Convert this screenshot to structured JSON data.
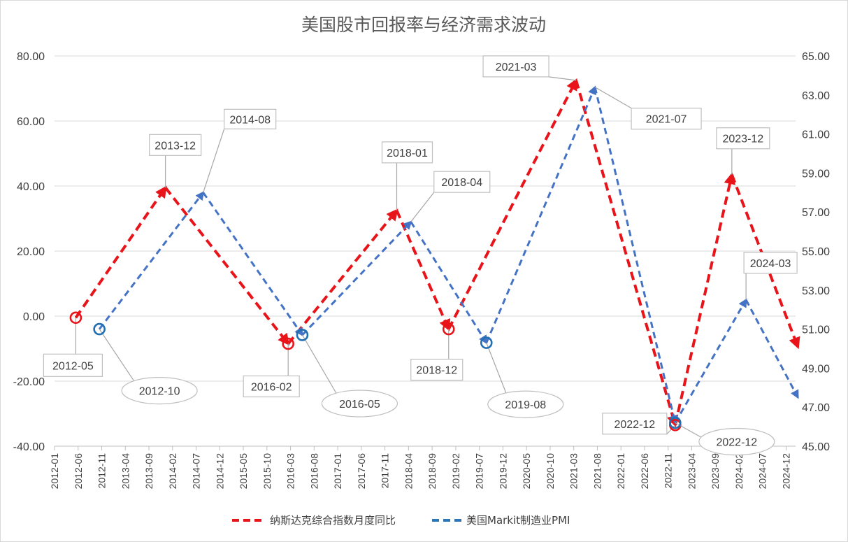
{
  "chart_data": {
    "type": "line",
    "title": "美国股市回报率与经济需求波动",
    "y_left": {
      "ylim": [
        -40,
        80
      ],
      "ticks": [
        "80.00",
        "60.00",
        "40.00",
        "20.00",
        "0.00",
        "-20.00",
        "-40.00"
      ]
    },
    "y_right": {
      "ylim": [
        45,
        65
      ],
      "ticks": [
        "65.00",
        "63.00",
        "61.00",
        "59.00",
        "57.00",
        "55.00",
        "53.00",
        "51.00",
        "49.00",
        "47.00",
        "45.00"
      ]
    },
    "x_ticks": [
      "2012-01",
      "2012-06",
      "2012-11",
      "2013-04",
      "2013-09",
      "2014-02",
      "2014-07",
      "2014-12",
      "2015-05",
      "2015-10",
      "2016-03",
      "2016-08",
      "2017-01",
      "2017-06",
      "2017-11",
      "2018-04",
      "2018-09",
      "2019-02",
      "2019-07",
      "2019-12",
      "2020-05",
      "2020-10",
      "2021-03",
      "2021-08",
      "2022-01",
      "2022-06",
      "2022-11",
      "2023-04",
      "2023-09",
      "2024-02",
      "2024-07",
      "2024-12"
    ],
    "series": [
      {
        "name": "纳斯达克综合指数月度同比",
        "axis": "left",
        "color": "#e8141a",
        "points": [
          {
            "x": "2012-05",
            "y": -0.5
          },
          {
            "x": "2013-12",
            "y": 39.5
          },
          {
            "x": "2016-02",
            "y": -8.5
          },
          {
            "x": "2018-01",
            "y": 32.5
          },
          {
            "x": "2018-12",
            "y": -4.0
          },
          {
            "x": "2021-03",
            "y": 72.5
          },
          {
            "x": "2022-12",
            "y": -33.5
          },
          {
            "x": "2023-12",
            "y": 43.5
          },
          {
            "x": "2025-02",
            "y": -9.5
          }
        ]
      },
      {
        "name": "美国Markit制造业PMI",
        "axis": "right",
        "color": "#4472c4",
        "points": [
          {
            "x": "2012-10",
            "y": 51.0
          },
          {
            "x": "2014-08",
            "y": 58.0
          },
          {
            "x": "2016-05",
            "y": 50.7
          },
          {
            "x": "2018-04",
            "y": 56.5
          },
          {
            "x": "2019-08",
            "y": 50.3
          },
          {
            "x": "2021-07",
            "y": 63.4
          },
          {
            "x": "2022-12",
            "y": 46.2
          },
          {
            "x": "2024-03",
            "y": 52.5
          },
          {
            "x": "2025-02",
            "y": 47.5
          }
        ]
      }
    ],
    "annotations": [
      {
        "label": "2012-05",
        "series": 0,
        "point": 0,
        "shape": "box",
        "marker": true
      },
      {
        "label": "2013-12",
        "series": 0,
        "point": 1,
        "shape": "box",
        "marker": false
      },
      {
        "label": "2016-02",
        "series": 0,
        "point": 2,
        "shape": "box",
        "marker": true
      },
      {
        "label": "2018-01",
        "series": 0,
        "point": 3,
        "shape": "box",
        "marker": false
      },
      {
        "label": "2018-12",
        "series": 0,
        "point": 4,
        "shape": "box",
        "marker": true
      },
      {
        "label": "2021-03",
        "series": 0,
        "point": 5,
        "shape": "box",
        "marker": false
      },
      {
        "label": "2022-12",
        "series": 0,
        "point": 6,
        "shape": "box",
        "marker": true
      },
      {
        "label": "2023-12",
        "series": 0,
        "point": 7,
        "shape": "box",
        "marker": false
      },
      {
        "label": "2012-10",
        "series": 1,
        "point": 0,
        "shape": "ellipse",
        "marker": true
      },
      {
        "label": "2014-08",
        "series": 1,
        "point": 1,
        "shape": "box",
        "marker": false
      },
      {
        "label": "2016-05",
        "series": 1,
        "point": 2,
        "shape": "ellipse",
        "marker": true
      },
      {
        "label": "2018-04",
        "series": 1,
        "point": 3,
        "shape": "box",
        "marker": false
      },
      {
        "label": "2019-08",
        "series": 1,
        "point": 4,
        "shape": "ellipse",
        "marker": true
      },
      {
        "label": "2021-07",
        "series": 1,
        "point": 5,
        "shape": "box",
        "marker": false
      },
      {
        "label": "2022-12",
        "series": 1,
        "point": 6,
        "shape": "ellipse",
        "marker": true
      },
      {
        "label": "2024-03",
        "series": 1,
        "point": 7,
        "shape": "box",
        "marker": false
      }
    ],
    "legend": {
      "position": "bottom"
    },
    "grid": true
  }
}
